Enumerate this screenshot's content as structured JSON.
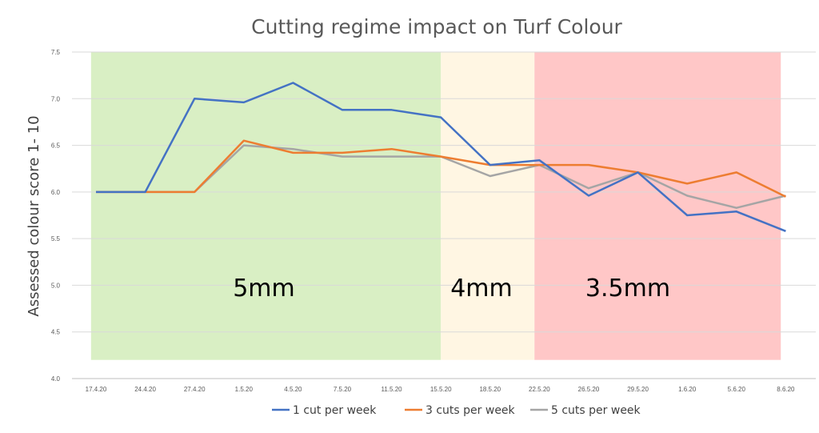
{
  "chart_data": {
    "type": "line",
    "title": "Cutting regime impact on Turf Colour",
    "xlabel": "",
    "ylabel": "Assessed colour score 1- 10",
    "ylim": [
      4.0,
      7.5
    ],
    "yticks": [
      "4.0",
      "4.5",
      "5.0",
      "5.5",
      "6.0",
      "6.5",
      "7.0",
      "7.5"
    ],
    "grid": true,
    "legend_position": "bottom",
    "categories": [
      "17.4.20",
      "24.4.20",
      "27.4.20",
      "1.5.20",
      "4.5.20",
      "7.5.20",
      "11.5.20",
      "15.5.20",
      "18.5.20",
      "22.5.20",
      "26.5.20",
      "29.5.20",
      "1.6.20",
      "5.6.20",
      "8.6.20"
    ],
    "series": [
      {
        "name": "1 cut per week",
        "color": "#4472C4",
        "values": [
          6.0,
          6.0,
          7.0,
          6.96,
          7.17,
          6.88,
          6.88,
          6.8,
          6.29,
          6.34,
          5.96,
          6.21,
          5.75,
          5.79,
          5.58
        ]
      },
      {
        "name": "3 cuts per week",
        "color": "#ED7D31",
        "values": [
          6.0,
          6.0,
          6.0,
          6.55,
          6.42,
          6.42,
          6.46,
          6.38,
          6.29,
          6.29,
          6.29,
          6.21,
          6.09,
          6.21,
          5.95
        ]
      },
      {
        "name": "5 cuts per week",
        "color": "#A5A5A5",
        "values": [
          6.0,
          6.0,
          6.0,
          6.5,
          6.46,
          6.38,
          6.38,
          6.38,
          6.17,
          6.29,
          6.04,
          6.21,
          5.96,
          5.83,
          5.96
        ]
      }
    ],
    "zones": [
      {
        "label": "5mm",
        "color": "#d9efc4",
        "from_index": -0.1,
        "to_index": 7.0
      },
      {
        "label": "4mm",
        "color": "#fff6e3",
        "from_index": 7.0,
        "to_index": 8.9
      },
      {
        "label": "3.5mm",
        "color": "#ffc7c7",
        "from_index": 8.9,
        "to_index": 13.9
      }
    ]
  }
}
